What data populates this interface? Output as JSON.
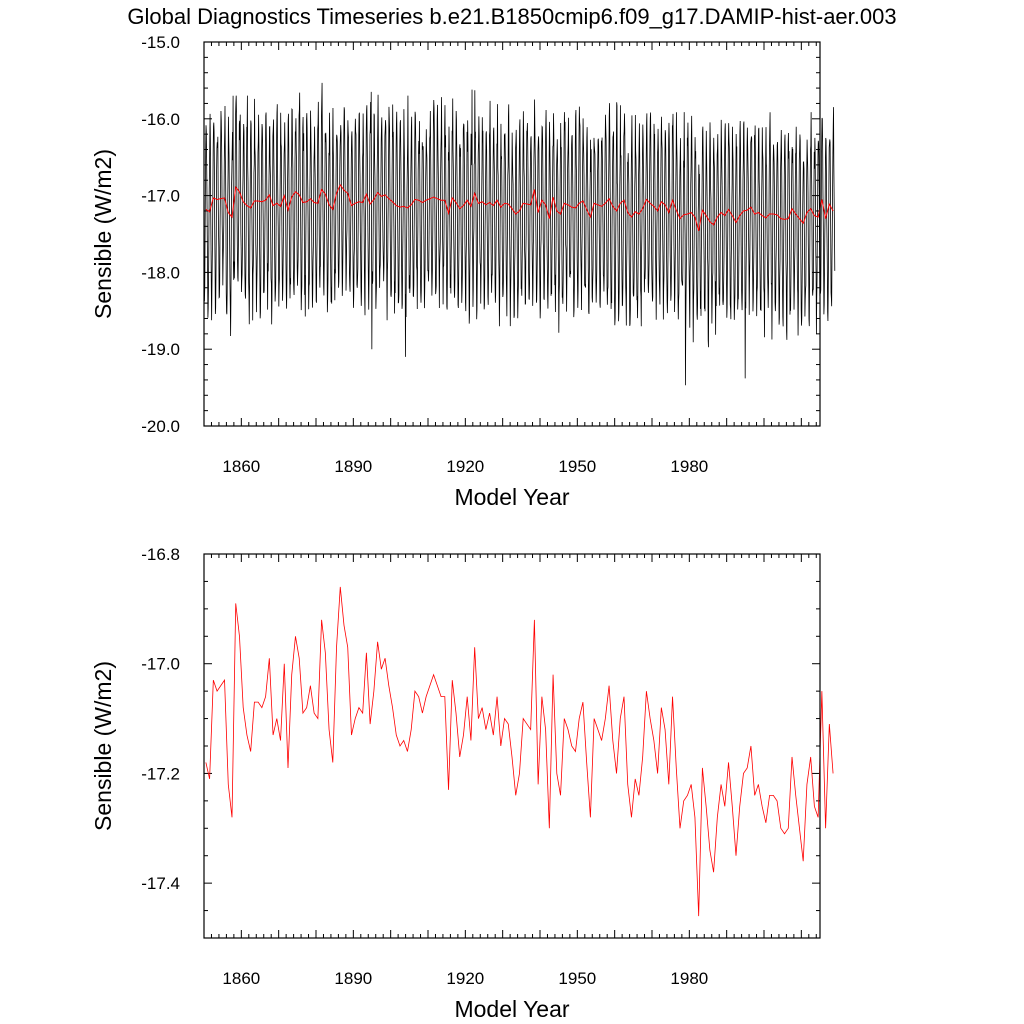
{
  "figure": {
    "title": "Global Diagnostics Timeseries b.e21.B1850cmip6.f09_g17.DAMIP-hist-aer.003"
  },
  "colors": {
    "monthly": "#000000",
    "annual": "#ff0000",
    "frame": "#000000"
  },
  "chart_data": [
    {
      "type": "line",
      "ylabel": "Sensible (W/m2)",
      "xlabel": "Model Year",
      "xlim": [
        1850,
        2015
      ],
      "ylim": [
        -20.0,
        -15.0
      ],
      "xticks": [
        1860,
        1890,
        1920,
        1950,
        1980
      ],
      "xtick_labels": [
        "1860",
        "1890",
        "1920",
        "1950",
        "1980"
      ],
      "yticks": [
        -15.0,
        -16.0,
        -17.0,
        -18.0,
        -19.0,
        -20.0
      ],
      "ytick_labels": [
        "-15.0",
        "-16.0",
        "-17.0",
        "-18.0",
        "-19.0",
        "-20.0"
      ],
      "series": [
        {
          "description": "monthly",
          "color": "#000000",
          "seasonal_mean": -17.2,
          "seasonal_max_typical": -16.3,
          "seasonal_min_typical": -18.6,
          "peak_highs": [
            [
              1858,
              -15.7
            ],
            [
              1895,
              -15.65
            ],
            [
              1922,
              -15.62
            ]
          ],
          "peak_lows": [
            [
              1895,
              -19.0
            ],
            [
              1904,
              -19.1
            ],
            [
              1979,
              -19.47
            ],
            [
              1995,
              -19.38
            ]
          ]
        },
        {
          "description": "annual",
          "color": "#ff0000",
          "ref": "annual"
        }
      ]
    },
    {
      "type": "line",
      "ylabel": "Sensible (W/m2)",
      "xlabel": "Model Year",
      "xlim": [
        1850,
        2015
      ],
      "ylim": [
        -17.5,
        -16.8
      ],
      "xticks": [
        1860,
        1890,
        1920,
        1950,
        1980
      ],
      "xtick_labels": [
        "1860",
        "1890",
        "1920",
        "1950",
        "1980"
      ],
      "yticks": [
        -16.8,
        -17.0,
        -17.2,
        -17.4
      ],
      "ytick_labels": [
        "-16.8",
        "-17.0",
        "-17.2",
        "-17.4"
      ],
      "series": [
        {
          "description": "annual",
          "color": "#ff0000",
          "x_start": 1850,
          "values": [
            -17.18,
            -17.21,
            -17.03,
            -17.05,
            -17.04,
            -17.03,
            -17.22,
            -17.28,
            -16.89,
            -16.95,
            -17.08,
            -17.13,
            -17.16,
            -17.07,
            -17.07,
            -17.08,
            -17.06,
            -16.99,
            -17.13,
            -17.1,
            -17.14,
            -17.0,
            -17.19,
            -17.02,
            -16.95,
            -16.99,
            -17.09,
            -17.08,
            -17.04,
            -17.09,
            -17.1,
            -16.92,
            -16.98,
            -17.12,
            -17.18,
            -16.97,
            -16.86,
            -16.93,
            -16.97,
            -17.13,
            -17.1,
            -17.08,
            -17.09,
            -16.98,
            -17.11,
            -17.05,
            -16.96,
            -17.01,
            -16.99,
            -17.04,
            -17.08,
            -17.13,
            -17.15,
            -17.14,
            -17.16,
            -17.12,
            -17.05,
            -17.06,
            -17.09,
            -17.06,
            -17.04,
            -17.02,
            -17.04,
            -17.06,
            -17.06,
            -17.23,
            -17.03,
            -17.09,
            -17.17,
            -17.13,
            -17.06,
            -17.14,
            -16.97,
            -17.1,
            -17.08,
            -17.12,
            -17.09,
            -17.13,
            -17.06,
            -17.15,
            -17.1,
            -17.11,
            -17.17,
            -17.24,
            -17.2,
            -17.1,
            -17.11,
            -17.12,
            -16.92,
            -17.22,
            -17.06,
            -17.12,
            -17.3,
            -17.02,
            -17.2,
            -17.24,
            -17.1,
            -17.12,
            -17.15,
            -17.16,
            -17.1,
            -17.07,
            -17.18,
            -17.28,
            -17.1,
            -17.12,
            -17.14,
            -17.1,
            -17.04,
            -17.14,
            -17.2,
            -17.1,
            -17.06,
            -17.22,
            -17.28,
            -17.21,
            -17.24,
            -17.17,
            -17.05,
            -17.1,
            -17.14,
            -17.2,
            -17.08,
            -17.12,
            -17.22,
            -17.06,
            -17.19,
            -17.3,
            -17.25,
            -17.24,
            -17.22,
            -17.28,
            -17.46,
            -17.19,
            -17.26,
            -17.34,
            -17.38,
            -17.28,
            -17.22,
            -17.26,
            -17.18,
            -17.26,
            -17.35,
            -17.26,
            -17.2,
            -17.19,
            -17.15,
            -17.24,
            -17.22,
            -17.26,
            -17.29,
            -17.24,
            -17.24,
            -17.25,
            -17.3,
            -17.31,
            -17.3,
            -17.17,
            -17.24,
            -17.3,
            -17.36,
            -17.22,
            -17.17,
            -17.26,
            -17.28,
            -17.05,
            -17.3,
            -17.11,
            -17.2
          ]
        }
      ]
    }
  ]
}
